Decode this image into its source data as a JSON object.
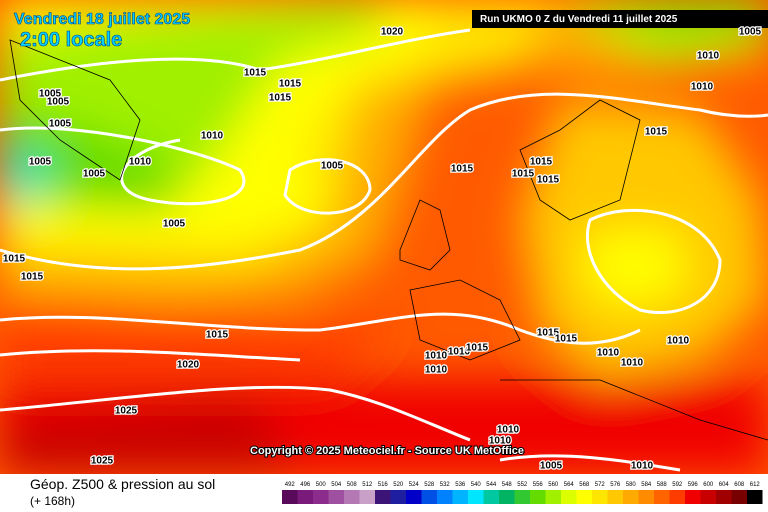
{
  "header": {
    "date": "Vendredi 18 juillet 2025",
    "time": "2:00 locale",
    "run": "Run UKMO 0 Z du Vendredi 11 juillet 2025"
  },
  "copyright": "Copyright © 2025 Meteociel.fr - Source UK MetOffice",
  "footer": {
    "title": "Géop. Z500 & pression au sol",
    "lead": "(+ 168h)"
  },
  "scale": {
    "labels": [
      492,
      496,
      500,
      504,
      508,
      512,
      516,
      520,
      524,
      528,
      532,
      536,
      540,
      544,
      548,
      552,
      556,
      560,
      564,
      568,
      572,
      576,
      580,
      584,
      588,
      592,
      596,
      600,
      604,
      608,
      612
    ],
    "colors": [
      "#5a0a5a",
      "#7a1a7a",
      "#8c2c8c",
      "#a050a0",
      "#b478b4",
      "#c8a0c8",
      "#3c1478",
      "#1e1ea0",
      "#0000c8",
      "#0050e6",
      "#0082ff",
      "#00b4ff",
      "#00e6ff",
      "#00c8a0",
      "#00b464",
      "#32c832",
      "#64dc00",
      "#a0f000",
      "#dcff00",
      "#ffff00",
      "#ffe600",
      "#ffc800",
      "#ffaa00",
      "#ff8c00",
      "#ff6400",
      "#ff3c00",
      "#f00000",
      "#c80000",
      "#a00000",
      "#780000",
      "#000000"
    ]
  },
  "isobar_labels": [
    "1020",
    "1005",
    "1010",
    "1015",
    "1015",
    "1005",
    "1005",
    "1015",
    "1010",
    "1005",
    "1010",
    "1015",
    "1005",
    "1010",
    "1005",
    "1015",
    "1015",
    "1005",
    "1015",
    "1015",
    "1005",
    "1015",
    "1015",
    "1015",
    "1015",
    "1015",
    "1010",
    "1010",
    "1010",
    "1015",
    "1010",
    "1020",
    "1010",
    "1010",
    "1025",
    "1010",
    "1010",
    "1025",
    "1005",
    "1010"
  ]
}
